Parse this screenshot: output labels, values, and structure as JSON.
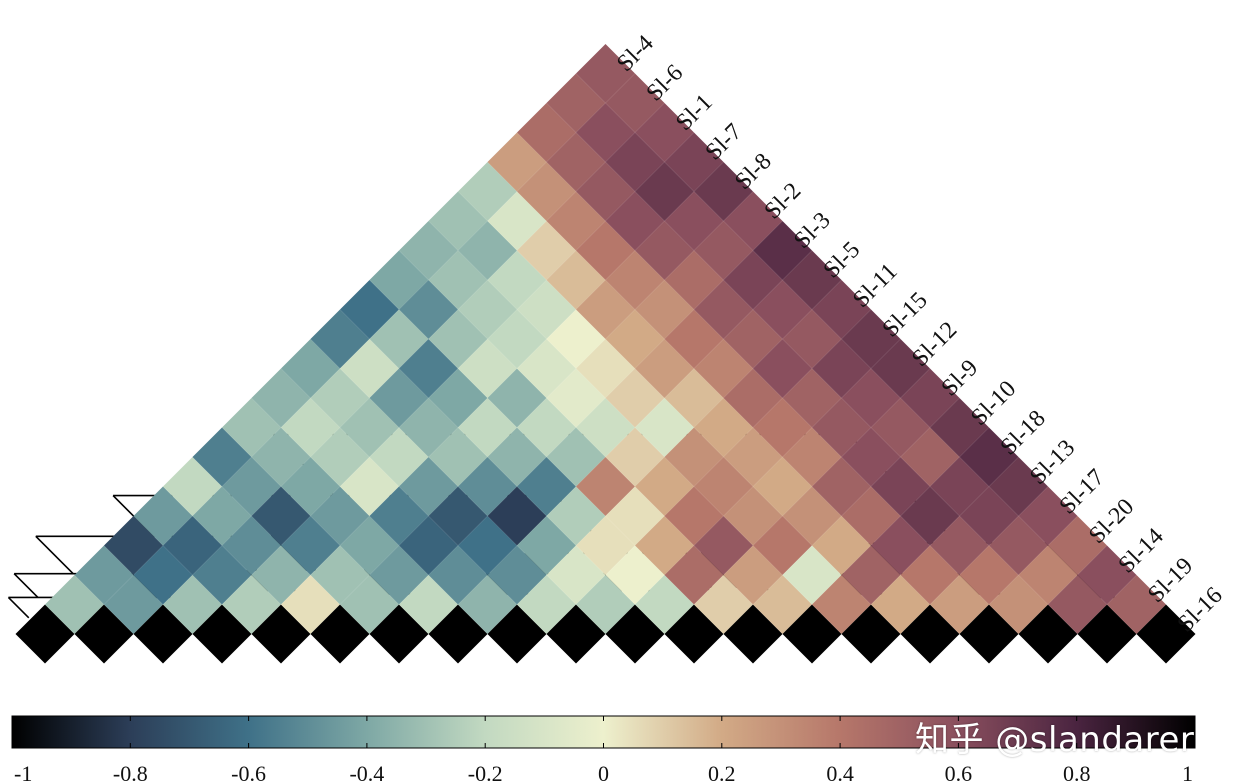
{
  "chart_data": {
    "type": "heatmap",
    "subtype": "lower-triangular correlation heatmap with dendrogram",
    "labels": [
      "Sl-4",
      "Sl-6",
      "Sl-1",
      "Sl-7",
      "Sl-8",
      "Sl-2",
      "Sl-3",
      "Sl-5",
      "Sl-11",
      "Sl-15",
      "Sl-12",
      "Sl-9",
      "Sl-10",
      "Sl-18",
      "Sl-13",
      "Sl-17",
      "Sl-20",
      "Sl-14",
      "Sl-19",
      "Sl-16"
    ],
    "matrix": [
      [
        1.0,
        -0.3,
        -0.45,
        -0.75,
        -0.45,
        -0.2,
        -0.55,
        -0.3,
        -0.35,
        -0.4,
        -0.55,
        -0.6,
        -0.4,
        -0.35,
        -0.3,
        -0.25,
        0.25,
        0.45,
        0.5,
        0.55
      ],
      [
        -0.3,
        1.0,
        -0.45,
        -0.6,
        -0.65,
        -0.4,
        -0.45,
        -0.35,
        -0.2,
        -0.25,
        -0.15,
        -0.3,
        -0.5,
        -0.3,
        -0.35,
        -0.1,
        0.3,
        0.5,
        0.6,
        0.55
      ],
      [
        -0.45,
        -0.45,
        1.0,
        -0.3,
        -0.55,
        -0.5,
        -0.7,
        -0.4,
        -0.25,
        -0.3,
        -0.45,
        -0.55,
        -0.3,
        -0.25,
        -0.2,
        0.1,
        0.35,
        0.55,
        0.65,
        0.6
      ],
      [
        -0.75,
        -0.6,
        -0.3,
        1.0,
        -0.25,
        -0.35,
        -0.55,
        -0.45,
        -0.1,
        -0.2,
        -0.35,
        -0.4,
        -0.15,
        -0.2,
        -0.15,
        0.15,
        0.4,
        0.6,
        0.7,
        0.65
      ],
      [
        -0.45,
        -0.65,
        -0.55,
        -0.25,
        1.0,
        0.05,
        -0.3,
        -0.4,
        -0.55,
        -0.45,
        -0.3,
        -0.2,
        -0.35,
        -0.1,
        0.0,
        0.25,
        0.35,
        0.55,
        0.6,
        0.7
      ],
      [
        -0.2,
        -0.4,
        -0.5,
        -0.35,
        0.05,
        1.0,
        -0.3,
        -0.45,
        -0.65,
        -0.7,
        -0.5,
        -0.35,
        -0.2,
        -0.05,
        0.05,
        0.2,
        0.3,
        0.45,
        0.55,
        0.6
      ],
      [
        -0.55,
        -0.45,
        -0.7,
        -0.55,
        -0.3,
        -0.3,
        1.0,
        -0.2,
        -0.5,
        -0.6,
        -0.8,
        -0.55,
        -0.3,
        -0.15,
        0.1,
        0.25,
        0.4,
        0.55,
        0.65,
        0.75
      ],
      [
        -0.3,
        -0.35,
        -0.4,
        -0.45,
        -0.4,
        -0.45,
        -0.2,
        1.0,
        -0.35,
        -0.5,
        -0.4,
        -0.25,
        0.35,
        0.1,
        -0.1,
        0.15,
        0.35,
        0.5,
        0.6,
        0.7
      ],
      [
        -0.35,
        -0.2,
        -0.25,
        -0.1,
        -0.55,
        -0.65,
        -0.5,
        -0.35,
        1.0,
        -0.2,
        -0.1,
        0.05,
        0.05,
        0.2,
        0.3,
        0.2,
        0.45,
        0.6,
        0.55,
        0.65
      ],
      [
        -0.4,
        -0.25,
        -0.3,
        -0.2,
        -0.45,
        -0.7,
        -0.6,
        -0.5,
        -0.2,
        1.0,
        -0.25,
        0.0,
        0.2,
        0.4,
        0.35,
        0.25,
        0.4,
        0.5,
        0.65,
        0.7
      ],
      [
        -0.55,
        -0.15,
        -0.45,
        -0.35,
        -0.3,
        -0.5,
        -0.8,
        -0.4,
        -0.1,
        -0.25,
        1.0,
        -0.2,
        0.45,
        0.55,
        0.3,
        0.2,
        0.35,
        0.55,
        0.6,
        0.7
      ],
      [
        -0.6,
        -0.3,
        -0.55,
        -0.4,
        -0.2,
        -0.35,
        -0.55,
        -0.25,
        0.05,
        0.0,
        -0.2,
        1.0,
        0.1,
        0.25,
        0.4,
        0.3,
        0.5,
        0.6,
        0.55,
        0.65
      ],
      [
        -0.4,
        -0.5,
        -0.3,
        -0.15,
        -0.35,
        -0.2,
        -0.3,
        0.35,
        0.05,
        0.2,
        0.45,
        0.1,
        1.0,
        0.15,
        -0.1,
        0.2,
        0.45,
        0.65,
        0.5,
        0.7
      ],
      [
        -0.35,
        -0.3,
        -0.25,
        -0.2,
        -0.1,
        -0.05,
        -0.15,
        0.1,
        0.2,
        0.4,
        0.55,
        0.25,
        0.15,
        1.0,
        0.35,
        0.5,
        0.6,
        0.7,
        0.65,
        0.75
      ],
      [
        -0.3,
        -0.35,
        -0.2,
        -0.15,
        0.0,
        0.05,
        0.1,
        -0.1,
        0.3,
        0.35,
        0.3,
        0.4,
        -0.1,
        0.35,
        1.0,
        0.2,
        0.4,
        0.55,
        0.65,
        0.7
      ],
      [
        -0.25,
        -0.1,
        0.1,
        0.15,
        0.25,
        0.2,
        0.25,
        0.15,
        0.2,
        0.25,
        0.2,
        0.3,
        0.2,
        0.5,
        0.2,
        1.0,
        0.25,
        0.4,
        0.55,
        0.6
      ],
      [
        0.25,
        0.3,
        0.35,
        0.4,
        0.35,
        0.3,
        0.4,
        0.35,
        0.45,
        0.4,
        0.35,
        0.5,
        0.45,
        0.6,
        0.4,
        0.25,
        1.0,
        0.3,
        0.35,
        0.45
      ],
      [
        0.45,
        0.5,
        0.55,
        0.6,
        0.55,
        0.45,
        0.55,
        0.5,
        0.6,
        0.5,
        0.55,
        0.6,
        0.65,
        0.7,
        0.55,
        0.4,
        0.3,
        1.0,
        0.55,
        0.6
      ],
      [
        0.5,
        0.6,
        0.65,
        0.7,
        0.6,
        0.55,
        0.65,
        0.6,
        0.55,
        0.65,
        0.6,
        0.55,
        0.5,
        0.65,
        0.65,
        0.55,
        0.35,
        0.55,
        1.0,
        0.5
      ],
      [
        0.55,
        0.55,
        0.6,
        0.65,
        0.7,
        0.6,
        0.75,
        0.7,
        0.65,
        0.7,
        0.7,
        0.65,
        0.7,
        0.75,
        0.7,
        0.6,
        0.45,
        0.6,
        0.5,
        1.0
      ]
    ],
    "colorbar": {
      "min": -1,
      "max": 1,
      "ticks": [
        "-1",
        "-0.8",
        "-0.6",
        "-0.4",
        "-0.2",
        "0",
        "0.2",
        "0.4",
        "0.6",
        "0.8",
        "1"
      ],
      "colors": [
        "#000000",
        "#2c3e58",
        "#3f7188",
        "#7ea8a5",
        "#c2d9c1",
        "#edf0cd",
        "#d2aa86",
        "#b6776a",
        "#8a4f5e",
        "#4a2440",
        "#000000"
      ]
    },
    "dendrogram": true,
    "title": "",
    "xlabel": "",
    "ylabel": ""
  },
  "watermark": "知乎 @slandarer"
}
